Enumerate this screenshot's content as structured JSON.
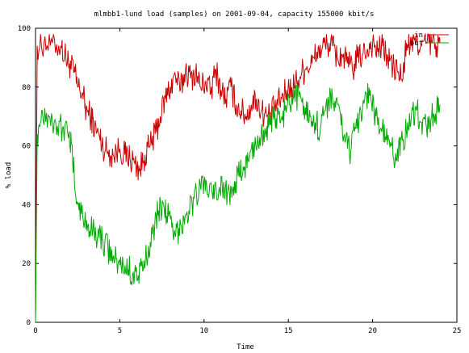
{
  "chart_data": {
    "type": "line",
    "title": "mlmbb1-lund load (samples) on 2001-09-04, capacity 155000 kbit/s",
    "xlabel": "Time",
    "ylabel": "% load",
    "xlim": [
      0,
      25
    ],
    "ylim": [
      0,
      100
    ],
    "xticks": [
      0,
      5,
      10,
      15,
      20,
      25
    ],
    "yticks": [
      0,
      20,
      40,
      60,
      80,
      100
    ],
    "legend_position": "top-right",
    "grid": false,
    "series": [
      {
        "name": "in",
        "color": "#cc0000",
        "x": [
          0,
          0.1,
          0.5,
          1.0,
          1.5,
          1.8,
          2.0,
          2.3,
          2.5,
          2.8,
          3.0,
          3.3,
          3.5,
          3.8,
          4.0,
          4.3,
          4.6,
          5.0,
          5.3,
          5.6,
          5.9,
          6.2,
          6.5,
          6.8,
          7.1,
          7.4,
          7.7,
          8.0,
          8.3,
          8.6,
          8.9,
          9.2,
          9.5,
          9.8,
          10.1,
          10.4,
          10.7,
          11.0,
          11.3,
          11.6,
          11.9,
          12.2,
          12.5,
          12.8,
          13.1,
          13.4,
          13.7,
          14.0,
          14.3,
          14.6,
          14.9,
          15.2,
          15.5,
          15.8,
          16.1,
          16.4,
          16.7,
          17.0,
          17.3,
          17.6,
          17.9,
          18.2,
          18.5,
          18.8,
          19.1,
          19.4,
          19.7,
          20.0,
          20.3,
          20.6,
          20.9,
          21.2,
          21.5,
          21.8,
          22.0,
          22.3,
          22.6,
          22.9,
          23.2,
          23.5,
          23.8,
          24.0
        ],
        "values": [
          0,
          94,
          95,
          95,
          94,
          90,
          88,
          85,
          80,
          78,
          72,
          70,
          66,
          63,
          60,
          58,
          57,
          59,
          57,
          56,
          54,
          52,
          57,
          60,
          64,
          70,
          76,
          80,
          84,
          79,
          86,
          83,
          85,
          80,
          82,
          78,
          86,
          79,
          76,
          80,
          74,
          72,
          70,
          74,
          76,
          72,
          70,
          71,
          74,
          76,
          79,
          80,
          82,
          85,
          87,
          88,
          92,
          93,
          95,
          94,
          90,
          91,
          88,
          86,
          90,
          91,
          93,
          95,
          92,
          94,
          90,
          87,
          85,
          83,
          95,
          94,
          96,
          94,
          95,
          95,
          94,
          95
        ]
      },
      {
        "name": "out",
        "color": "#00aa00",
        "x": [
          0,
          0.1,
          0.4,
          0.8,
          1.2,
          1.6,
          2.0,
          2.2,
          2.5,
          2.8,
          3.1,
          3.4,
          3.7,
          4.0,
          4.3,
          4.6,
          4.9,
          5.2,
          5.5,
          5.8,
          6.1,
          6.4,
          6.7,
          7.0,
          7.3,
          7.6,
          7.9,
          8.2,
          8.5,
          8.8,
          9.1,
          9.4,
          9.7,
          10.0,
          10.3,
          10.6,
          10.9,
          11.2,
          11.5,
          11.8,
          12.1,
          12.4,
          12.7,
          13.0,
          13.3,
          13.6,
          13.9,
          14.2,
          14.5,
          14.8,
          15.1,
          15.4,
          15.7,
          16.0,
          16.3,
          16.6,
          16.9,
          17.2,
          17.5,
          17.8,
          18.1,
          18.4,
          18.7,
          19.0,
          19.3,
          19.6,
          19.9,
          20.2,
          20.5,
          20.8,
          21.1,
          21.4,
          21.7,
          22.0,
          22.3,
          22.6,
          22.9,
          23.2,
          23.5,
          23.8,
          24.0
        ],
        "values": [
          0,
          64,
          72,
          70,
          68,
          66,
          65,
          55,
          40,
          36,
          33,
          31,
          30,
          28,
          25,
          22,
          20,
          19,
          18,
          17,
          16,
          18,
          26,
          32,
          38,
          40,
          36,
          28,
          32,
          36,
          38,
          42,
          45,
          48,
          44,
          42,
          46,
          45,
          44,
          48,
          50,
          53,
          56,
          60,
          63,
          66,
          67,
          70,
          68,
          72,
          74,
          75,
          78,
          73,
          70,
          68,
          66,
          72,
          78,
          73,
          70,
          62,
          58,
          66,
          72,
          78,
          76,
          70,
          66,
          62,
          60,
          55,
          62,
          65,
          70,
          72,
          68,
          66,
          70,
          72,
          74
        ]
      }
    ]
  }
}
